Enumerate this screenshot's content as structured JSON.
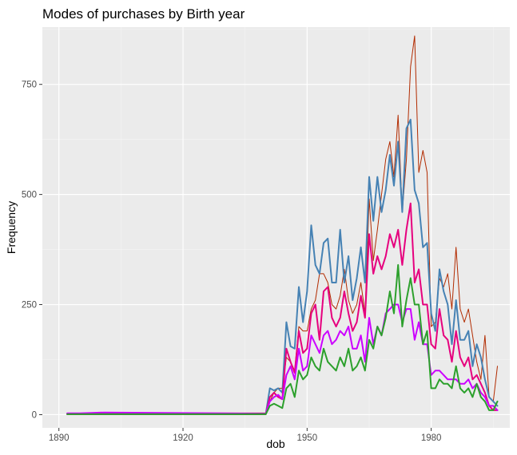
{
  "chart_data": {
    "type": "line",
    "title": "Modes of purchases by Birth year",
    "xlabel": "dob",
    "ylabel": "Frequency",
    "xlim": [
      1886,
      1999
    ],
    "ylim": [
      -30,
      880
    ],
    "x_ticks": [
      1890,
      1920,
      1950,
      1980
    ],
    "y_ticks": [
      0,
      250,
      500,
      750
    ],
    "grid": true,
    "legend": "none",
    "background": "#ebebeb",
    "x": [
      1892,
      1895,
      1898,
      1901,
      1940,
      1941,
      1942,
      1943,
      1944,
      1945,
      1946,
      1947,
      1948,
      1949,
      1950,
      1951,
      1952,
      1953,
      1954,
      1955,
      1956,
      1957,
      1958,
      1959,
      1960,
      1961,
      1962,
      1963,
      1964,
      1965,
      1966,
      1967,
      1968,
      1969,
      1970,
      1971,
      1972,
      1973,
      1974,
      1975,
      1976,
      1977,
      1978,
      1979,
      1980,
      1981,
      1982,
      1983,
      1984,
      1985,
      1986,
      1987,
      1988,
      1989,
      1990,
      1991,
      1992,
      1993,
      1994,
      1995,
      1996
    ],
    "series": [
      {
        "color": "#b22b00",
        "width": 1,
        "values": [
          2,
          2,
          3,
          3,
          4,
          30,
          50,
          60,
          60,
          130,
          120,
          100,
          200,
          190,
          190,
          240,
          260,
          320,
          320,
          300,
          250,
          240,
          270,
          330,
          260,
          230,
          250,
          300,
          230,
          490,
          350,
          420,
          500,
          580,
          620,
          540,
          680,
          460,
          580,
          790,
          860,
          550,
          600,
          550,
          200,
          210,
          310,
          290,
          320,
          240,
          380,
          240,
          210,
          240,
          180,
          120,
          80,
          180,
          40,
          30,
          110
        ]
      },
      {
        "color": "#4682b4",
        "width": 2,
        "values": [
          1,
          1,
          1,
          1,
          1,
          60,
          55,
          60,
          50,
          210,
          155,
          150,
          290,
          210,
          280,
          430,
          340,
          320,
          390,
          400,
          300,
          300,
          420,
          300,
          360,
          260,
          310,
          380,
          300,
          540,
          440,
          540,
          460,
          510,
          590,
          520,
          620,
          460,
          650,
          670,
          510,
          480,
          380,
          390,
          230,
          190,
          330,
          280,
          250,
          160,
          260,
          170,
          170,
          190,
          110,
          160,
          130,
          80,
          40,
          30,
          20
        ]
      },
      {
        "color": "#e6007e",
        "width": 2,
        "values": [
          1,
          1,
          1,
          1,
          1,
          40,
          50,
          40,
          35,
          150,
          120,
          95,
          190,
          140,
          150,
          230,
          250,
          170,
          280,
          290,
          220,
          200,
          220,
          280,
          230,
          190,
          210,
          270,
          220,
          410,
          320,
          360,
          330,
          360,
          410,
          380,
          420,
          340,
          420,
          480,
          300,
          330,
          250,
          250,
          160,
          150,
          240,
          180,
          170,
          120,
          190,
          130,
          110,
          130,
          80,
          90,
          70,
          50,
          20,
          10,
          10
        ]
      },
      {
        "color": "#cc00ff",
        "width": 2,
        "values": [
          3,
          3,
          4,
          5,
          2,
          30,
          40,
          45,
          35,
          90,
          110,
          80,
          150,
          100,
          110,
          180,
          160,
          140,
          180,
          190,
          160,
          170,
          190,
          180,
          200,
          150,
          150,
          180,
          120,
          220,
          160,
          200,
          180,
          230,
          240,
          250,
          250,
          210,
          240,
          240,
          170,
          210,
          160,
          160,
          90,
          100,
          100,
          90,
          80,
          80,
          80,
          70,
          70,
          80,
          60,
          70,
          50,
          40,
          20,
          20,
          10
        ]
      },
      {
        "color": "#2ca02c",
        "width": 2,
        "values": [
          1,
          1,
          1,
          1,
          1,
          20,
          25,
          20,
          15,
          60,
          70,
          40,
          100,
          80,
          90,
          130,
          110,
          100,
          150,
          120,
          110,
          100,
          130,
          110,
          150,
          100,
          110,
          130,
          100,
          170,
          150,
          200,
          180,
          220,
          280,
          230,
          340,
          200,
          260,
          310,
          250,
          250,
          160,
          190,
          60,
          60,
          80,
          70,
          70,
          60,
          110,
          60,
          50,
          60,
          40,
          70,
          40,
          30,
          10,
          10,
          30
        ]
      }
    ]
  }
}
